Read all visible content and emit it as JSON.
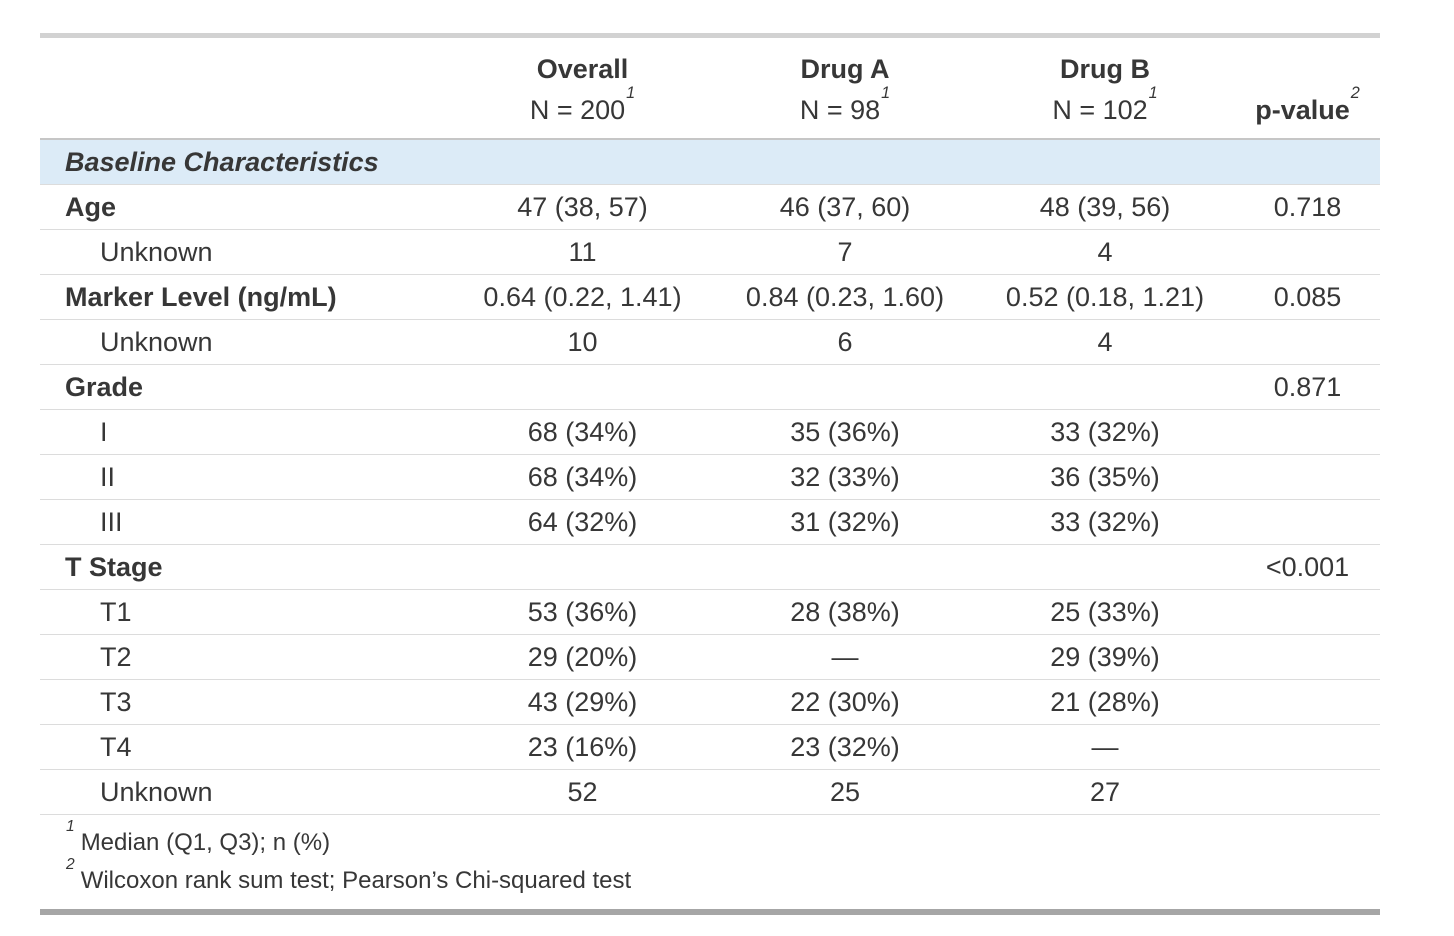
{
  "table": {
    "columns": [
      {
        "id": "label",
        "title": ""
      },
      {
        "id": "overall",
        "title": "Overall",
        "n": "N = 200",
        "footnote_ref": "1"
      },
      {
        "id": "drug_a",
        "title": "Drug A",
        "n": "N = 98",
        "footnote_ref": "1"
      },
      {
        "id": "drug_b",
        "title": "Drug B",
        "n": "N = 102",
        "footnote_ref": "1"
      },
      {
        "id": "p_value",
        "title": "p-value",
        "footnote_ref": "2"
      }
    ],
    "section_header": "Baseline Characteristics",
    "rows": [
      {
        "label": "Age",
        "bold": true,
        "indent": false,
        "overall": "47 (38, 57)",
        "drug_a": "46 (37, 60)",
        "drug_b": "48 (39, 56)",
        "p_value": "0.718"
      },
      {
        "label": "Unknown",
        "bold": false,
        "indent": true,
        "overall": "11",
        "drug_a": "7",
        "drug_b": "4",
        "p_value": ""
      },
      {
        "label": "Marker Level (ng/mL)",
        "bold": true,
        "indent": false,
        "overall": "0.64 (0.22, 1.41)",
        "drug_a": "0.84 (0.23, 1.60)",
        "drug_b": "0.52 (0.18, 1.21)",
        "p_value": "0.085"
      },
      {
        "label": "Unknown",
        "bold": false,
        "indent": true,
        "overall": "10",
        "drug_a": "6",
        "drug_b": "4",
        "p_value": ""
      },
      {
        "label": "Grade",
        "bold": true,
        "indent": false,
        "overall": "",
        "drug_a": "",
        "drug_b": "",
        "p_value": "0.871"
      },
      {
        "label": "I",
        "bold": false,
        "indent": true,
        "overall": "68 (34%)",
        "drug_a": "35 (36%)",
        "drug_b": "33 (32%)",
        "p_value": ""
      },
      {
        "label": "II",
        "bold": false,
        "indent": true,
        "overall": "68 (34%)",
        "drug_a": "32 (33%)",
        "drug_b": "36 (35%)",
        "p_value": ""
      },
      {
        "label": "III",
        "bold": false,
        "indent": true,
        "overall": "64 (32%)",
        "drug_a": "31 (32%)",
        "drug_b": "33 (32%)",
        "p_value": ""
      },
      {
        "label": "T Stage",
        "bold": true,
        "indent": false,
        "overall": "",
        "drug_a": "",
        "drug_b": "",
        "p_value": "<0.001"
      },
      {
        "label": "T1",
        "bold": false,
        "indent": true,
        "overall": "53 (36%)",
        "drug_a": "28 (38%)",
        "drug_b": "25 (33%)",
        "p_value": ""
      },
      {
        "label": "T2",
        "bold": false,
        "indent": true,
        "overall": "29 (20%)",
        "drug_a": "—",
        "drug_b": "29 (39%)",
        "p_value": ""
      },
      {
        "label": "T3",
        "bold": false,
        "indent": true,
        "overall": "43 (29%)",
        "drug_a": "22 (30%)",
        "drug_b": "21 (28%)",
        "p_value": ""
      },
      {
        "label": "T4",
        "bold": false,
        "indent": true,
        "overall": "23 (16%)",
        "drug_a": "23 (32%)",
        "drug_b": "—",
        "p_value": ""
      },
      {
        "label": "Unknown",
        "bold": false,
        "indent": true,
        "overall": "52",
        "drug_a": "25",
        "drug_b": "27",
        "p_value": ""
      }
    ],
    "footnotes": [
      {
        "marker": "1",
        "text": "Median (Q1, Q3); n (%)"
      },
      {
        "marker": "2",
        "text": "Wilcoxon rank sum test; Pearson’s Chi-squared test"
      }
    ],
    "colors": {
      "section_bg": "#dcebf7",
      "border_top": "#d2d2d2",
      "border_bottom": "#a6a6a6",
      "row_line": "#dcdcdc",
      "header_line": "#c6c6c6",
      "text": "#373737"
    }
  }
}
